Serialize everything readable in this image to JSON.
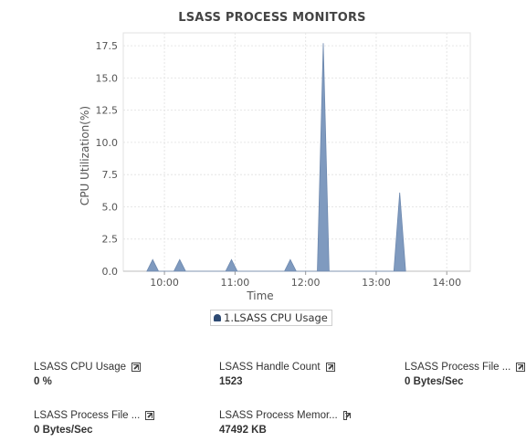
{
  "title": "LSASS PROCESS MONITORS",
  "colors": {
    "series": "#7f9abf",
    "series_stroke": "#6d88ae",
    "legend_swatch": "#2d4a73",
    "grid": "#e6e6e6"
  },
  "chart_data": {
    "type": "area",
    "title": "LSASS PROCESS MONITORS",
    "xlabel": "Time",
    "ylabel": "CPU Utilization(%)",
    "ylim": [
      0,
      18.5
    ],
    "yticks": [
      0.0,
      2.5,
      5.0,
      7.5,
      10.0,
      12.5,
      15.0,
      17.5
    ],
    "ytick_labels": [
      "0.0",
      "2.5",
      "5.0",
      "7.5",
      "10.0",
      "12.5",
      "15.0",
      "17.5"
    ],
    "xlim": [
      "09:25",
      "14:20"
    ],
    "xticks": [
      "10:00",
      "11:00",
      "12:00",
      "13:00",
      "14:00"
    ],
    "xtick_labels": [
      "10:00",
      "11:00",
      "12:00",
      "13:00",
      "14:00"
    ],
    "grid": true,
    "legend_position": "bottom",
    "series": [
      {
        "name": "1.LSASS CPU Usage",
        "points": [
          [
            "09:45",
            0
          ],
          [
            "09:50",
            0.9
          ],
          [
            "09:55",
            0
          ],
          [
            "10:08",
            0
          ],
          [
            "10:13",
            0.9
          ],
          [
            "10:18",
            0
          ],
          [
            "10:52",
            0
          ],
          [
            "10:57",
            0.9
          ],
          [
            "11:02",
            0
          ],
          [
            "11:42",
            0
          ],
          [
            "11:47",
            0.9
          ],
          [
            "11:52",
            0
          ],
          [
            "12:10",
            0
          ],
          [
            "12:15",
            17.7
          ],
          [
            "12:20",
            0
          ],
          [
            "13:15",
            0
          ],
          [
            "13:20",
            6.1
          ],
          [
            "13:25",
            0
          ]
        ]
      }
    ]
  },
  "legend": {
    "label": "1.LSASS CPU Usage"
  },
  "widgets": [
    {
      "label": "LSASS CPU Usage",
      "value": "0 %"
    },
    {
      "label": "LSASS Handle Count",
      "value": "1523"
    },
    {
      "label": "LSASS Process File ...",
      "value": "0 Bytes/Sec"
    },
    {
      "label": "LSASS Process File ...",
      "value": "0 Bytes/Sec"
    },
    {
      "label": "LSASS Process Memor...",
      "value": "47492 KB"
    }
  ]
}
